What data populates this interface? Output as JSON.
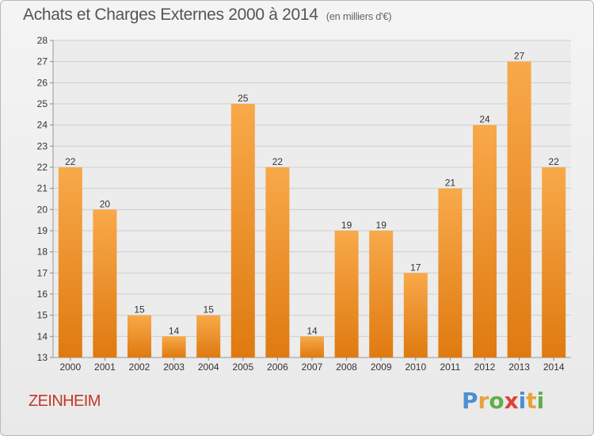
{
  "title": "Achats et Charges Externes 2000 à 2014",
  "unit": "(en milliers d'€)",
  "commune": "ZEINHEIM",
  "logo": {
    "text": "Proxiti",
    "letters": [
      {
        "ch": "P",
        "color": "#4a8fd6"
      },
      {
        "ch": "r",
        "color": "#e8a23a"
      },
      {
        "ch": "o",
        "color": "#5db04a"
      },
      {
        "ch": "x",
        "color": "#e0403a"
      },
      {
        "ch": "i",
        "color": "#4a8fd6"
      },
      {
        "ch": "t",
        "color": "#e8a23a"
      },
      {
        "ch": "i",
        "color": "#5db04a"
      }
    ]
  },
  "colors": {
    "bar_light": "#f8a94a",
    "bar_dark": "#df7a10",
    "grid": "#cfcfcf",
    "commune": "#c0392b"
  },
  "chart_data": {
    "type": "bar",
    "title": "Achats et Charges Externes 2000 à 2014",
    "subtitle": "(en milliers d'€)",
    "categories": [
      "2000",
      "2001",
      "2002",
      "2003",
      "2004",
      "2005",
      "2006",
      "2007",
      "2008",
      "2009",
      "2010",
      "2011",
      "2012",
      "2013",
      "2014"
    ],
    "values": [
      22,
      20,
      15,
      14,
      15,
      25,
      22,
      14,
      19,
      19,
      17,
      21,
      24,
      27,
      22
    ],
    "ylim": [
      13,
      28
    ],
    "yticks": [
      13,
      14,
      15,
      16,
      17,
      18,
      19,
      20,
      21,
      22,
      23,
      24,
      25,
      26,
      27,
      28
    ],
    "grid": true,
    "xlabel": "",
    "ylabel": ""
  }
}
